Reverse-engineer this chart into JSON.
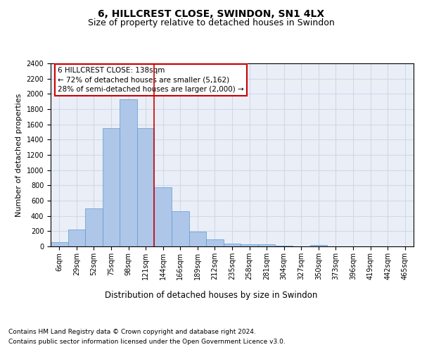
{
  "title": "6, HILLCREST CLOSE, SWINDON, SN1 4LX",
  "subtitle": "Size of property relative to detached houses in Swindon",
  "xlabel": "Distribution of detached houses by size in Swindon",
  "ylabel": "Number of detached properties",
  "categories": [
    "6sqm",
    "29sqm",
    "52sqm",
    "75sqm",
    "98sqm",
    "121sqm",
    "144sqm",
    "166sqm",
    "189sqm",
    "212sqm",
    "235sqm",
    "258sqm",
    "281sqm",
    "304sqm",
    "327sqm",
    "350sqm",
    "373sqm",
    "396sqm",
    "419sqm",
    "442sqm",
    "465sqm"
  ],
  "values": [
    60,
    220,
    500,
    1550,
    1930,
    1550,
    780,
    460,
    190,
    95,
    40,
    30,
    25,
    5,
    0,
    20,
    0,
    0,
    0,
    0,
    0
  ],
  "bar_color": "#aec6e8",
  "bar_edge_color": "#5b9bd5",
  "vline_color": "#cc0000",
  "annotation_text": "6 HILLCREST CLOSE: 138sqm\n← 72% of detached houses are smaller (5,162)\n28% of semi-detached houses are larger (2,000) →",
  "annotation_box_color": "#ffffff",
  "annotation_box_edge": "#cc0000",
  "ylim": [
    0,
    2400
  ],
  "yticks": [
    0,
    200,
    400,
    600,
    800,
    1000,
    1200,
    1400,
    1600,
    1800,
    2000,
    2200,
    2400
  ],
  "grid_color": "#d0d8e8",
  "background_color": "#eaeff7",
  "title_fontsize": 10,
  "subtitle_fontsize": 9,
  "xlabel_fontsize": 8.5,
  "ylabel_fontsize": 8,
  "tick_fontsize": 7,
  "annotation_fontsize": 7.5,
  "footer_fontsize": 6.5,
  "footer_line1": "Contains HM Land Registry data © Crown copyright and database right 2024.",
  "footer_line2": "Contains public sector information licensed under the Open Government Licence v3.0."
}
